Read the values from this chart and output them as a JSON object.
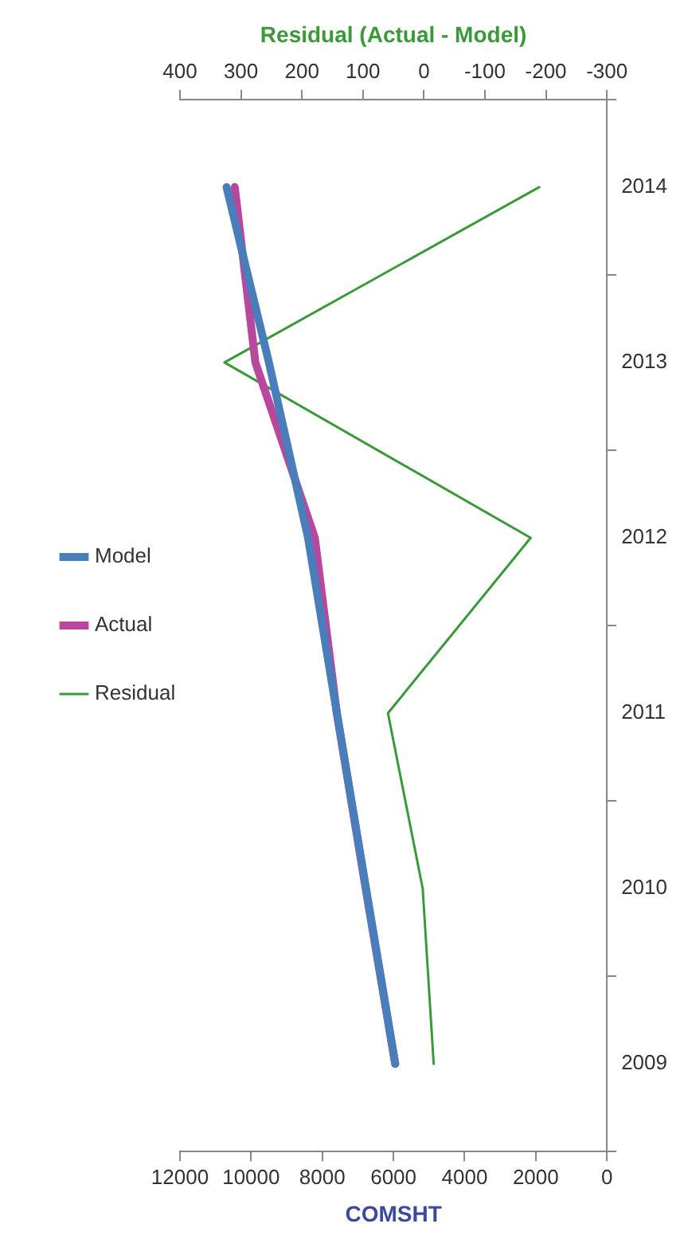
{
  "chart_data": {
    "type": "line",
    "orientation": "horizontal",
    "categories": [
      "2014",
      "2013",
      "2012",
      "2011",
      "2010",
      "2009"
    ],
    "series": [
      {
        "name": "Model",
        "color": "#4a7ebb",
        "values": [
          10690,
          9500,
          8400,
          7590,
          6770,
          5950
        ]
      },
      {
        "name": "Actual",
        "color": "#b8489e",
        "values": [
          10460,
          9880,
          8210,
          7590,
          6780,
          5950
        ]
      },
      {
        "name": "Residual",
        "color": "#3a9a3a",
        "axis": "x2",
        "values": [
          -189,
          327,
          -175,
          59,
          2,
          -16
        ]
      }
    ],
    "xlabel": "COMSHT",
    "x2label": "Residual (Actual - Model)",
    "xlim": [
      12000,
      0
    ],
    "xticks": [
      12000,
      10000,
      8000,
      6000,
      4000,
      2000,
      0
    ],
    "x2lim": [
      400,
      -300
    ],
    "x2ticks": [
      400,
      300,
      200,
      100,
      0,
      -100,
      -200,
      -300
    ],
    "legend": "left",
    "grid": false,
    "marker": "none"
  }
}
